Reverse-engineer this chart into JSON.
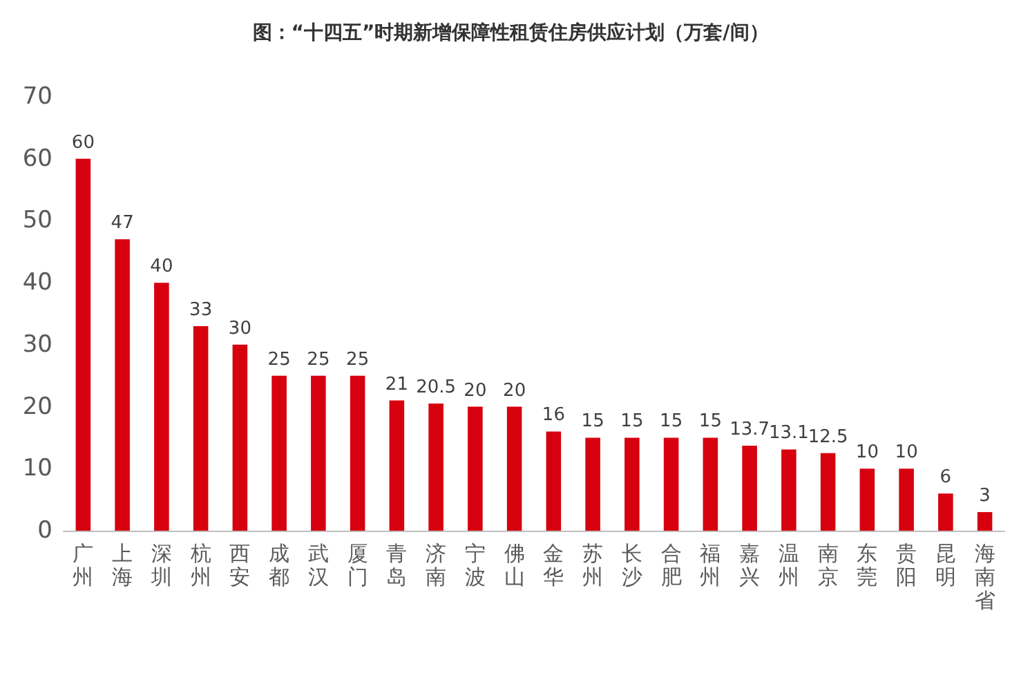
{
  "chart_data": {
    "type": "bar",
    "title": "图：“十四五”时期新增保障性租赁住房供应计划（万套/间）",
    "categories": [
      "广州",
      "上海",
      "深圳",
      "杭州",
      "西安",
      "成都",
      "武汉",
      "厦门",
      "青岛",
      "济南",
      "宁波",
      "佛山",
      "金华",
      "苏州",
      "长沙",
      "合肥",
      "福州",
      "嘉兴",
      "温州",
      "南京",
      "东莞",
      "贵阳",
      "昆明",
      "海南省"
    ],
    "values": [
      60,
      47,
      40,
      33,
      30,
      25,
      25,
      25,
      21,
      20.5,
      20,
      20,
      16,
      15,
      15,
      15,
      15,
      13.7,
      13.1,
      12.5,
      10,
      10,
      6,
      3
    ],
    "color": "#d7000f",
    "ylim": [
      0,
      70
    ],
    "yticks": [
      0,
      10,
      20,
      30,
      40,
      50,
      60,
      70
    ],
    "grid": false,
    "data_labels": true
  }
}
